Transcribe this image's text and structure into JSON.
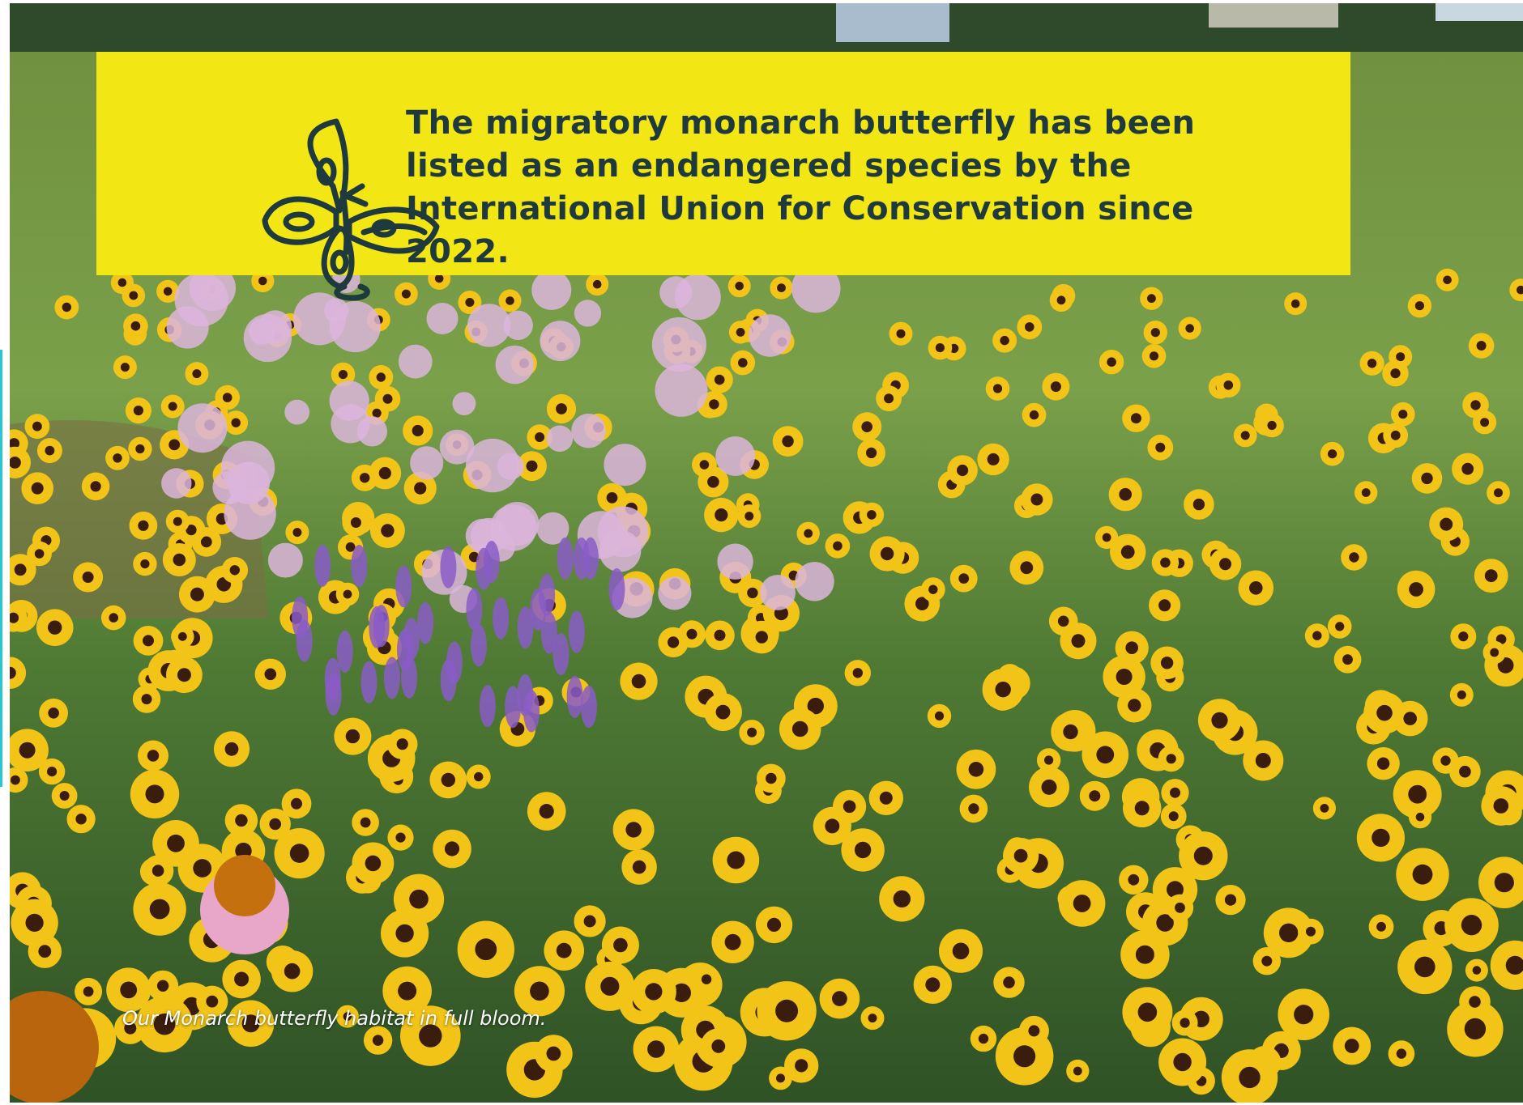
{
  "banner": {
    "text": "The migratory monarch butterfly has been listed as an endangered species by the International Union for Conservation since 2022."
  },
  "caption": "Our Monarch butterfly habitat in full bloom."
}
